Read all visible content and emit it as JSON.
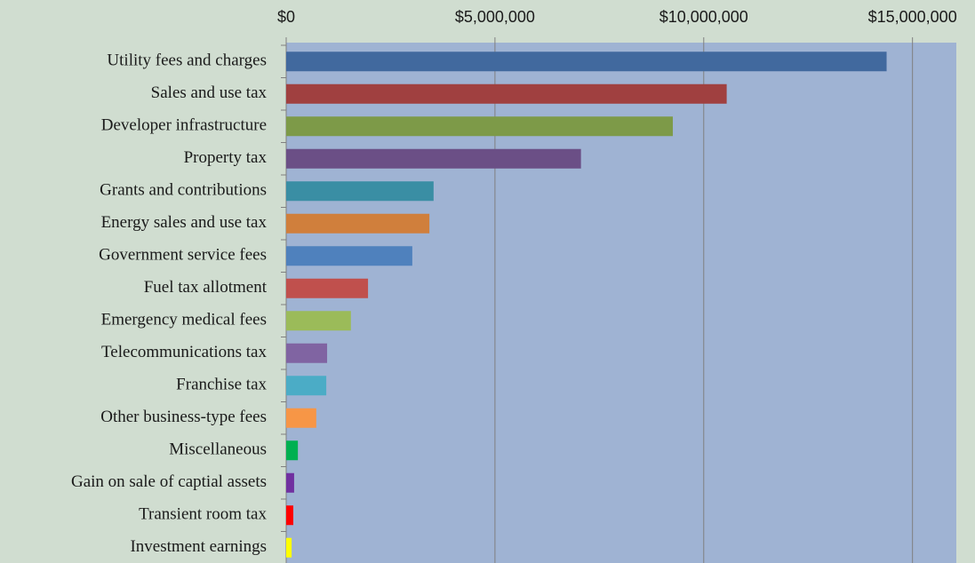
{
  "chart_data": {
    "type": "barh",
    "categories": [
      "Utility fees and charges",
      "Sales and use tax",
      "Developer infrastructure",
      "Property tax",
      "Grants and contributions",
      "Energy sales and use tax",
      "Government service fees",
      "Fuel tax allotment",
      "Emergency medical fees",
      "Telecommunications tax",
      "Franchise tax",
      "Other business-type fees",
      "Miscellaneous",
      "Gain on sale of captial assets",
      "Transient room tax",
      "Investment earnings"
    ],
    "values": [
      14380000,
      10550000,
      9260000,
      7060000,
      3530000,
      3430000,
      3020000,
      1960000,
      1550000,
      980000,
      960000,
      720000,
      280000,
      190000,
      170000,
      130000
    ],
    "colors": [
      "#41699e",
      "#a04040",
      "#7d9a48",
      "#6b4f86",
      "#3a8ea4",
      "#d07f3c",
      "#4f81bd",
      "#c0504d",
      "#9bbb59",
      "#8064a2",
      "#4bacc6",
      "#f79646",
      "#00b050",
      "#7030a0",
      "#ff0000",
      "#ffff00"
    ],
    "xlim": [
      0,
      16050000
    ],
    "xticks": [
      {
        "value": 0,
        "label": "$0"
      },
      {
        "value": 5000000,
        "label": "$5,000,000"
      },
      {
        "value": 10000000,
        "label": "$10,000,000"
      },
      {
        "value": 15000000,
        "label": "$15,000,000"
      }
    ],
    "grid": true,
    "plot_color": "#9fb3d3"
  }
}
